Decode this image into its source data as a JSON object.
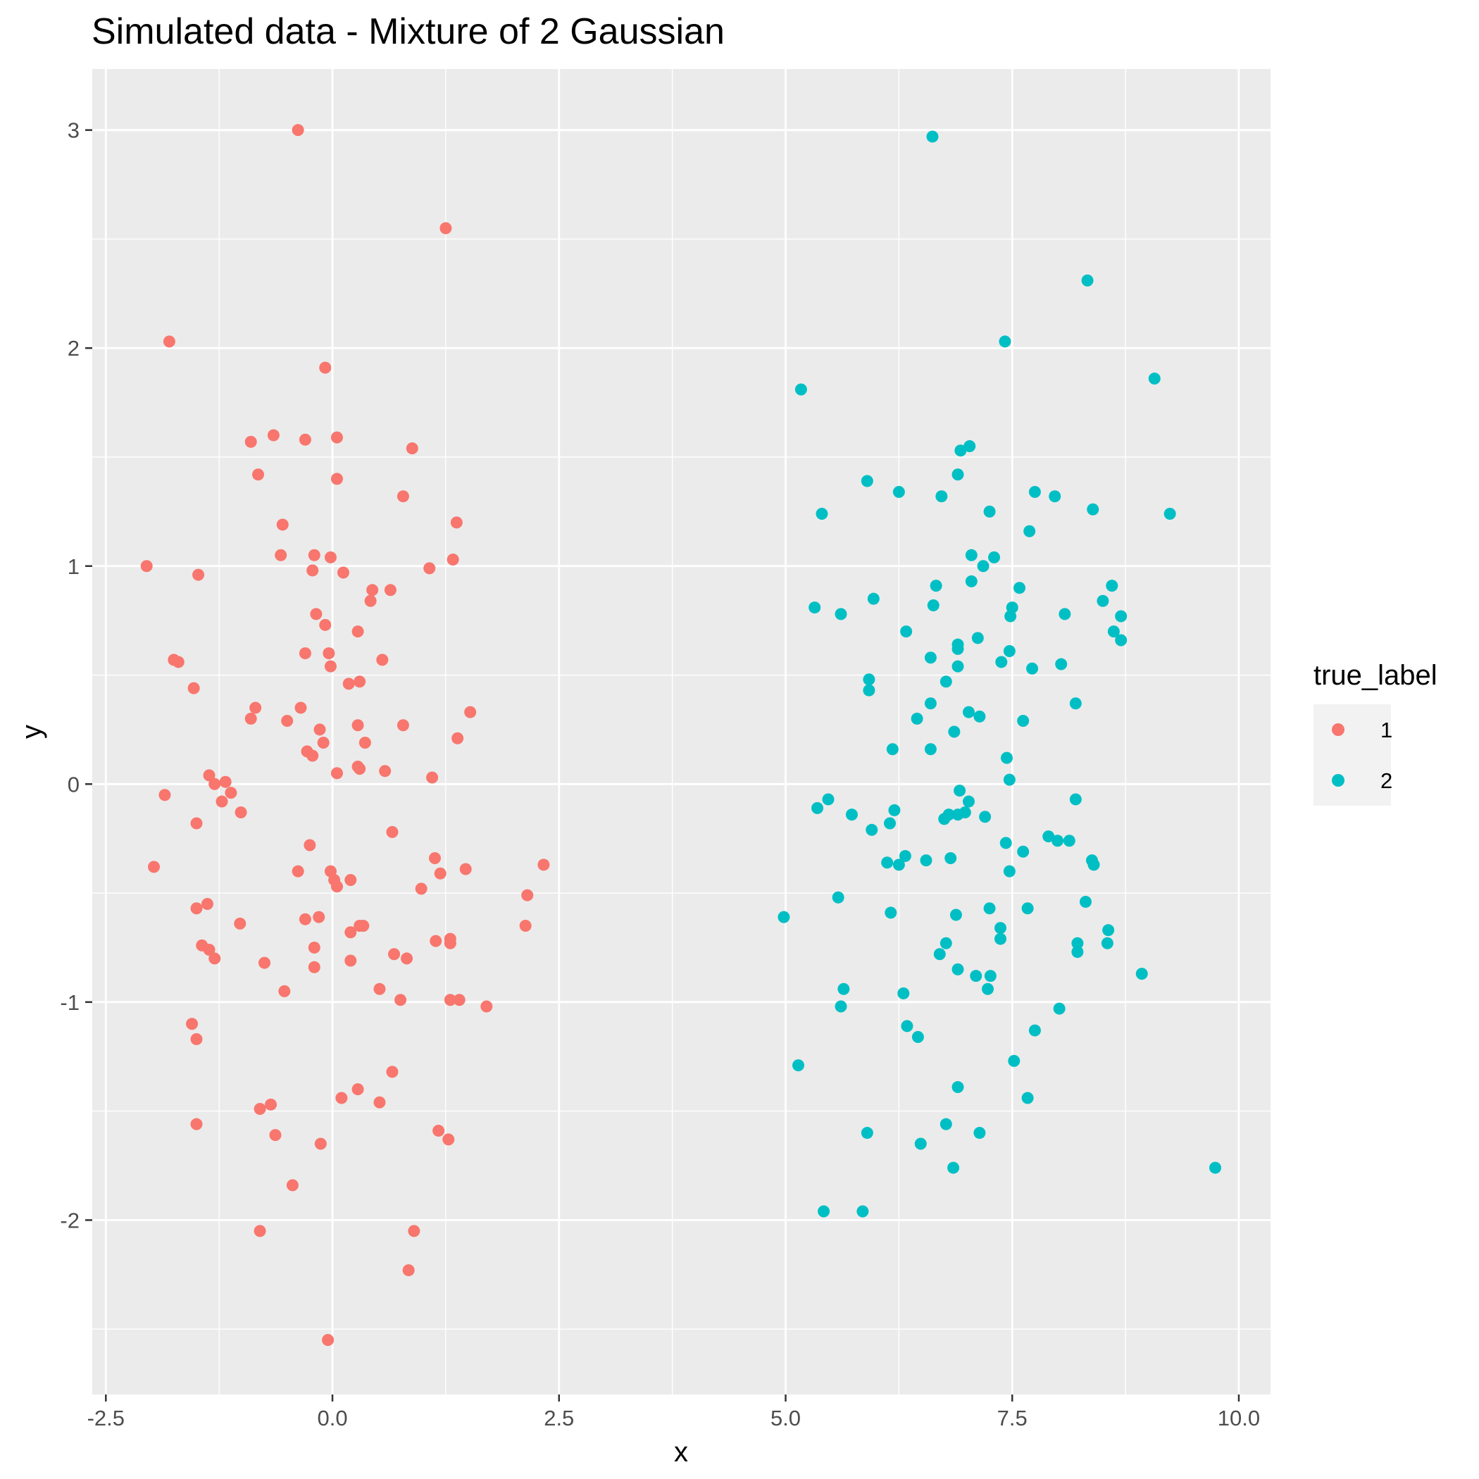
{
  "chart_data": {
    "type": "scatter",
    "title": "Simulated data - Mixture of 2 Gaussian",
    "xlabel": "x",
    "ylabel": "y",
    "xlim": [
      -2.65,
      10.35
    ],
    "ylim": [
      -2.8,
      3.28
    ],
    "x_ticks": [
      -2.5,
      0.0,
      2.5,
      5.0,
      7.5,
      10.0
    ],
    "x_tick_labels": [
      "-2.5",
      "0.0",
      "2.5",
      "5.0",
      "7.5",
      "10.0"
    ],
    "y_ticks": [
      -2,
      -1,
      0,
      1,
      2,
      3
    ],
    "y_tick_labels": [
      "-2",
      "-1",
      "0",
      "1",
      "2",
      "3"
    ],
    "grid": true,
    "legend_title": "true_label",
    "legend_position": "right",
    "series": [
      {
        "name": "1",
        "color": "#F8766D",
        "points": [
          [
            -0.38,
            3.0
          ],
          [
            1.25,
            2.55
          ],
          [
            -1.8,
            2.03
          ],
          [
            -0.08,
            1.91
          ],
          [
            -0.9,
            1.57
          ],
          [
            -0.65,
            1.6
          ],
          [
            -0.3,
            1.58
          ],
          [
            0.05,
            1.59
          ],
          [
            0.88,
            1.54
          ],
          [
            -0.82,
            1.42
          ],
          [
            0.05,
            1.4
          ],
          [
            0.78,
            1.32
          ],
          [
            1.37,
            1.2
          ],
          [
            -0.55,
            1.19
          ],
          [
            -0.57,
            1.05
          ],
          [
            -0.2,
            1.05
          ],
          [
            -0.02,
            1.04
          ],
          [
            1.33,
            1.03
          ],
          [
            -2.05,
            1.0
          ],
          [
            1.07,
            0.99
          ],
          [
            -0.22,
            0.98
          ],
          [
            0.12,
            0.97
          ],
          [
            -1.48,
            0.96
          ],
          [
            0.44,
            0.89
          ],
          [
            0.64,
            0.89
          ],
          [
            0.42,
            0.84
          ],
          [
            -0.18,
            0.78
          ],
          [
            -0.08,
            0.73
          ],
          [
            0.28,
            0.7
          ],
          [
            -0.3,
            0.6
          ],
          [
            -0.04,
            0.6
          ],
          [
            -1.75,
            0.57
          ],
          [
            -1.7,
            0.56
          ],
          [
            0.55,
            0.57
          ],
          [
            -0.02,
            0.54
          ],
          [
            0.18,
            0.46
          ],
          [
            0.3,
            0.47
          ],
          [
            -1.53,
            0.44
          ],
          [
            -0.85,
            0.35
          ],
          [
            -0.35,
            0.35
          ],
          [
            1.52,
            0.33
          ],
          [
            -0.9,
            0.3
          ],
          [
            -0.5,
            0.29
          ],
          [
            0.28,
            0.27
          ],
          [
            0.78,
            0.27
          ],
          [
            -0.14,
            0.25
          ],
          [
            1.38,
            0.21
          ],
          [
            -0.1,
            0.19
          ],
          [
            0.36,
            0.19
          ],
          [
            -0.28,
            0.15
          ],
          [
            -0.22,
            0.13
          ],
          [
            0.3,
            0.07
          ],
          [
            0.28,
            0.08
          ],
          [
            0.58,
            0.06
          ],
          [
            0.05,
            0.05
          ],
          [
            -1.36,
            0.04
          ],
          [
            1.1,
            0.03
          ],
          [
            -1.18,
            0.01
          ],
          [
            -1.3,
            0.0
          ],
          [
            -1.12,
            -0.04
          ],
          [
            -1.85,
            -0.05
          ],
          [
            -1.22,
            -0.08
          ],
          [
            -1.01,
            -0.13
          ],
          [
            -1.5,
            -0.18
          ],
          [
            0.66,
            -0.22
          ],
          [
            -0.25,
            -0.28
          ],
          [
            1.13,
            -0.34
          ],
          [
            2.33,
            -0.37
          ],
          [
            -1.97,
            -0.38
          ],
          [
            1.47,
            -0.39
          ],
          [
            -0.38,
            -0.4
          ],
          [
            -0.02,
            -0.4
          ],
          [
            1.19,
            -0.41
          ],
          [
            0.02,
            -0.44
          ],
          [
            0.2,
            -0.44
          ],
          [
            0.05,
            -0.47
          ],
          [
            0.98,
            -0.48
          ],
          [
            2.15,
            -0.51
          ],
          [
            -1.38,
            -0.55
          ],
          [
            -1.5,
            -0.57
          ],
          [
            -0.3,
            -0.62
          ],
          [
            -0.15,
            -0.61
          ],
          [
            -1.02,
            -0.64
          ],
          [
            0.3,
            -0.65
          ],
          [
            0.34,
            -0.65
          ],
          [
            2.13,
            -0.65
          ],
          [
            0.2,
            -0.68
          ],
          [
            1.14,
            -0.72
          ],
          [
            1.3,
            -0.71
          ],
          [
            1.3,
            -0.73
          ],
          [
            -1.44,
            -0.74
          ],
          [
            -1.36,
            -0.76
          ],
          [
            -0.2,
            -0.75
          ],
          [
            0.68,
            -0.78
          ],
          [
            -1.3,
            -0.8
          ],
          [
            0.82,
            -0.8
          ],
          [
            0.2,
            -0.81
          ],
          [
            -0.75,
            -0.82
          ],
          [
            -0.2,
            -0.84
          ],
          [
            0.52,
            -0.94
          ],
          [
            -0.53,
            -0.95
          ],
          [
            0.75,
            -0.99
          ],
          [
            1.3,
            -0.99
          ],
          [
            1.4,
            -0.99
          ],
          [
            1.7,
            -1.02
          ],
          [
            -1.55,
            -1.1
          ],
          [
            -1.5,
            -1.17
          ],
          [
            0.66,
            -1.32
          ],
          [
            0.28,
            -1.4
          ],
          [
            0.1,
            -1.44
          ],
          [
            0.52,
            -1.46
          ],
          [
            -0.68,
            -1.47
          ],
          [
            -0.8,
            -1.49
          ],
          [
            -1.5,
            -1.56
          ],
          [
            1.17,
            -1.59
          ],
          [
            -0.63,
            -1.61
          ],
          [
            1.28,
            -1.63
          ],
          [
            -0.13,
            -1.65
          ],
          [
            -0.44,
            -1.84
          ],
          [
            -0.8,
            -2.05
          ],
          [
            0.9,
            -2.05
          ],
          [
            0.84,
            -2.23
          ],
          [
            -0.05,
            -2.55
          ]
        ]
      },
      {
        "name": "2",
        "color": "#00BFC4",
        "points": [
          [
            6.62,
            2.97
          ],
          [
            8.33,
            2.31
          ],
          [
            7.42,
            2.03
          ],
          [
            9.07,
            1.86
          ],
          [
            5.17,
            1.81
          ],
          [
            7.03,
            1.55
          ],
          [
            6.93,
            1.53
          ],
          [
            6.9,
            1.42
          ],
          [
            5.9,
            1.39
          ],
          [
            6.25,
            1.34
          ],
          [
            7.75,
            1.34
          ],
          [
            6.72,
            1.32
          ],
          [
            7.97,
            1.32
          ],
          [
            8.39,
            1.26
          ],
          [
            7.25,
            1.25
          ],
          [
            5.4,
            1.24
          ],
          [
            9.24,
            1.24
          ],
          [
            7.69,
            1.16
          ],
          [
            7.3,
            1.04
          ],
          [
            7.05,
            1.05
          ],
          [
            7.18,
            1.0
          ],
          [
            7.05,
            0.93
          ],
          [
            6.66,
            0.91
          ],
          [
            7.58,
            0.9
          ],
          [
            8.6,
            0.91
          ],
          [
            5.97,
            0.85
          ],
          [
            8.5,
            0.84
          ],
          [
            6.63,
            0.82
          ],
          [
            7.5,
            0.81
          ],
          [
            5.32,
            0.81
          ],
          [
            5.61,
            0.78
          ],
          [
            8.08,
            0.78
          ],
          [
            8.7,
            0.77
          ],
          [
            7.48,
            0.77
          ],
          [
            6.33,
            0.7
          ],
          [
            8.62,
            0.7
          ],
          [
            7.12,
            0.67
          ],
          [
            8.7,
            0.66
          ],
          [
            6.9,
            0.64
          ],
          [
            6.9,
            0.62
          ],
          [
            7.47,
            0.61
          ],
          [
            6.6,
            0.58
          ],
          [
            7.38,
            0.56
          ],
          [
            8.04,
            0.55
          ],
          [
            6.9,
            0.54
          ],
          [
            7.72,
            0.53
          ],
          [
            5.92,
            0.48
          ],
          [
            6.77,
            0.47
          ],
          [
            5.92,
            0.43
          ],
          [
            6.6,
            0.37
          ],
          [
            8.2,
            0.37
          ],
          [
            7.02,
            0.33
          ],
          [
            7.14,
            0.31
          ],
          [
            6.45,
            0.3
          ],
          [
            7.62,
            0.29
          ],
          [
            6.86,
            0.24
          ],
          [
            6.18,
            0.16
          ],
          [
            6.6,
            0.16
          ],
          [
            7.44,
            0.12
          ],
          [
            7.47,
            0.02
          ],
          [
            6.92,
            -0.03
          ],
          [
            5.47,
            -0.07
          ],
          [
            8.2,
            -0.07
          ],
          [
            7.02,
            -0.08
          ],
          [
            6.2,
            -0.12
          ],
          [
            5.35,
            -0.11
          ],
          [
            6.98,
            -0.13
          ],
          [
            5.73,
            -0.14
          ],
          [
            6.8,
            -0.14
          ],
          [
            6.9,
            -0.14
          ],
          [
            7.2,
            -0.15
          ],
          [
            6.75,
            -0.16
          ],
          [
            6.15,
            -0.18
          ],
          [
            5.95,
            -0.21
          ],
          [
            7.9,
            -0.24
          ],
          [
            8.0,
            -0.26
          ],
          [
            8.13,
            -0.26
          ],
          [
            7.43,
            -0.27
          ],
          [
            7.62,
            -0.31
          ],
          [
            6.32,
            -0.33
          ],
          [
            8.38,
            -0.35
          ],
          [
            6.55,
            -0.35
          ],
          [
            6.82,
            -0.34
          ],
          [
            6.12,
            -0.36
          ],
          [
            6.25,
            -0.37
          ],
          [
            8.4,
            -0.37
          ],
          [
            7.47,
            -0.4
          ],
          [
            5.58,
            -0.52
          ],
          [
            8.31,
            -0.54
          ],
          [
            7.25,
            -0.57
          ],
          [
            7.67,
            -0.57
          ],
          [
            6.16,
            -0.59
          ],
          [
            6.88,
            -0.6
          ],
          [
            4.98,
            -0.61
          ],
          [
            7.37,
            -0.66
          ],
          [
            8.56,
            -0.67
          ],
          [
            7.37,
            -0.71
          ],
          [
            8.22,
            -0.73
          ],
          [
            6.77,
            -0.73
          ],
          [
            8.55,
            -0.73
          ],
          [
            6.7,
            -0.78
          ],
          [
            8.22,
            -0.77
          ],
          [
            6.9,
            -0.85
          ],
          [
            7.1,
            -0.88
          ],
          [
            7.26,
            -0.88
          ],
          [
            8.93,
            -0.87
          ],
          [
            5.64,
            -0.94
          ],
          [
            7.23,
            -0.94
          ],
          [
            6.3,
            -0.96
          ],
          [
            5.61,
            -1.02
          ],
          [
            8.02,
            -1.03
          ],
          [
            6.34,
            -1.11
          ],
          [
            7.75,
            -1.13
          ],
          [
            6.46,
            -1.16
          ],
          [
            7.52,
            -1.27
          ],
          [
            5.14,
            -1.29
          ],
          [
            6.9,
            -1.39
          ],
          [
            7.67,
            -1.44
          ],
          [
            6.77,
            -1.56
          ],
          [
            5.9,
            -1.6
          ],
          [
            7.14,
            -1.6
          ],
          [
            6.49,
            -1.65
          ],
          [
            6.85,
            -1.76
          ],
          [
            9.74,
            -1.76
          ],
          [
            5.42,
            -1.96
          ],
          [
            5.85,
            -1.96
          ]
        ]
      }
    ]
  }
}
